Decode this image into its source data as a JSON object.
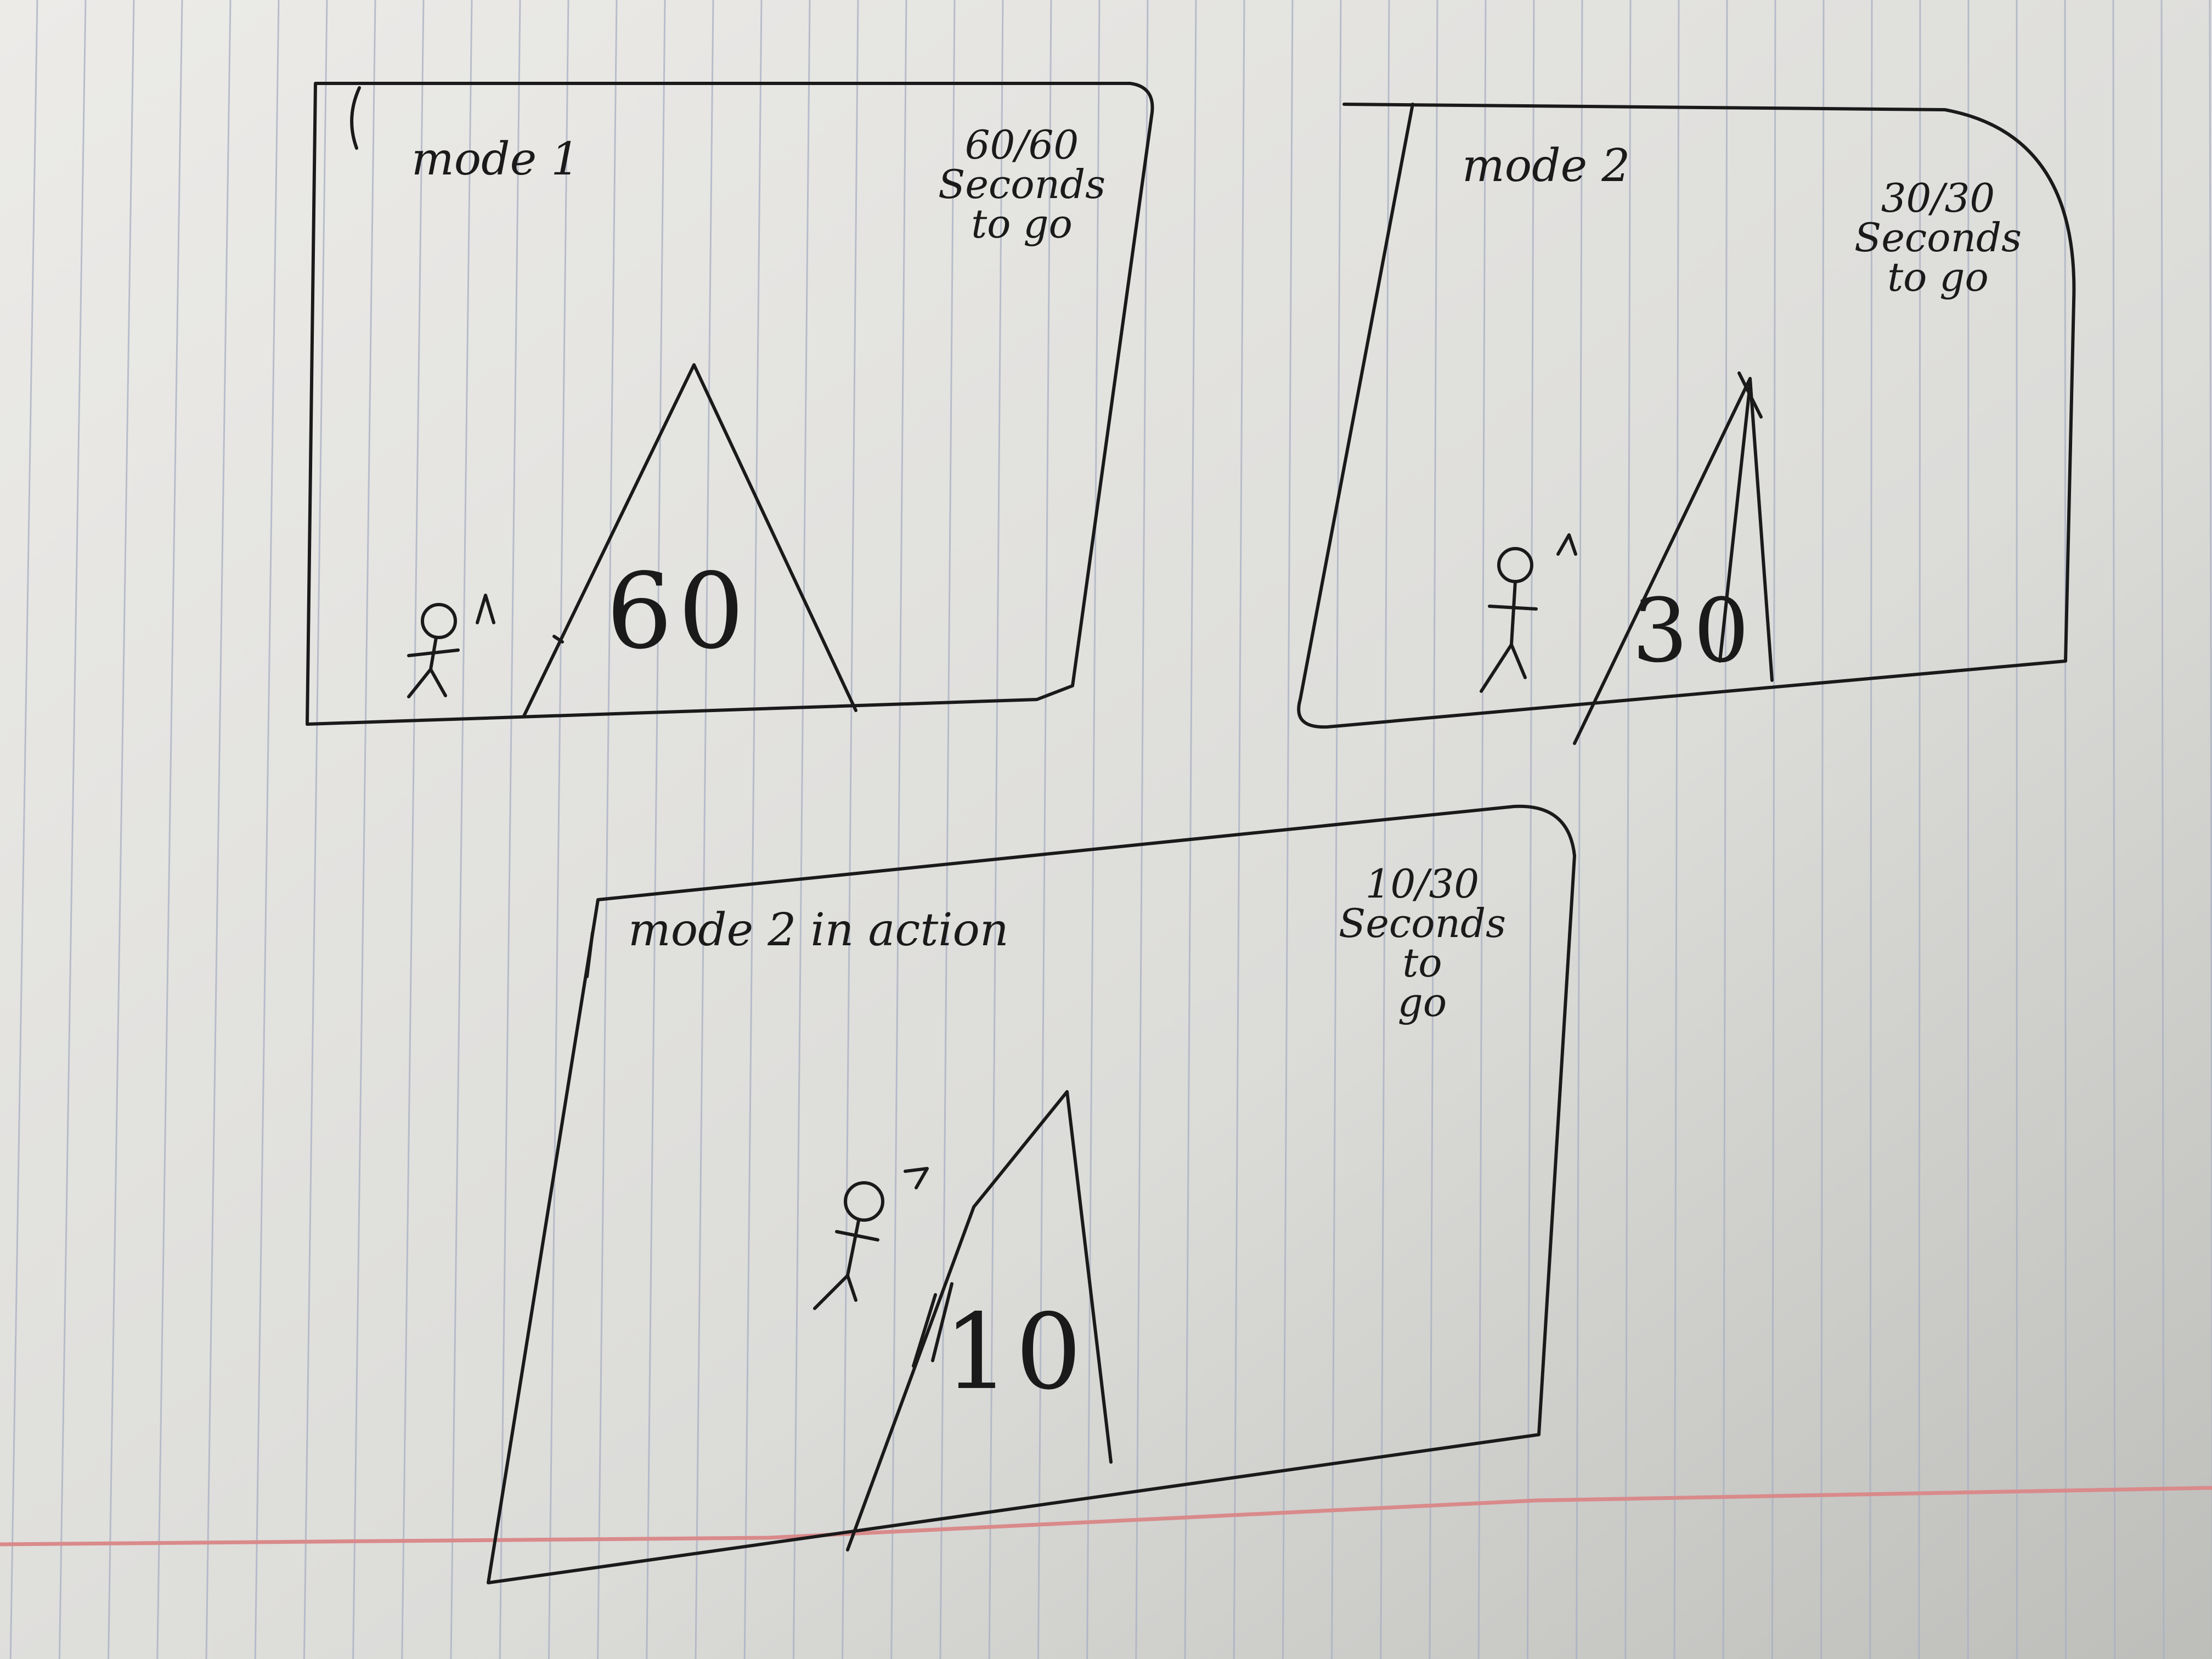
{
  "paper": {
    "background": "#e3e3e0",
    "rule_color": "#a9afc2",
    "margin_color": "#d98a8a",
    "ink_color": "#1a1a1a"
  },
  "frames": {
    "mode1": {
      "label": "mode 1",
      "counter": "60/60",
      "counter_caption_1": "Seconds",
      "counter_caption_2": "to go",
      "mountain_number": "60"
    },
    "mode2": {
      "label": "mode 2",
      "counter": "30/30",
      "counter_caption_1": "Seconds",
      "counter_caption_2": "to go",
      "mountain_number": "30"
    },
    "mode2_action": {
      "label": "mode 2 in action",
      "counter": "10/30",
      "counter_caption_1": "Seconds",
      "counter_caption_2": "to",
      "counter_caption_3": "go",
      "mountain_number": "10"
    }
  }
}
